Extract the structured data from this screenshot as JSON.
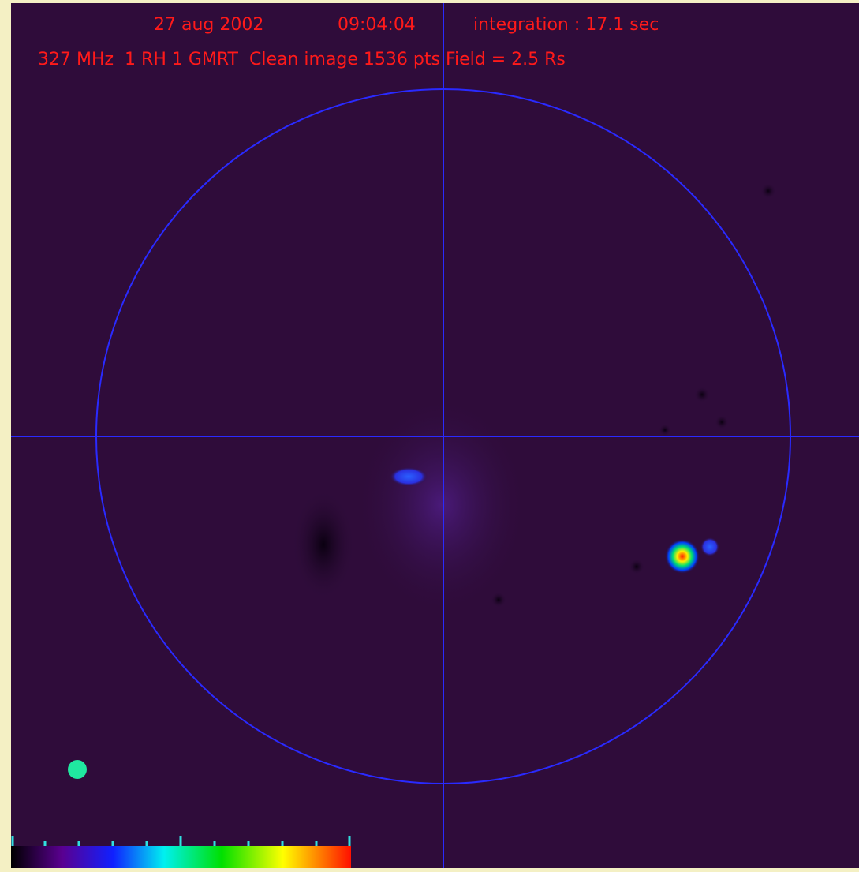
{
  "header": {
    "line1": {
      "date": "27 aug 2002",
      "time": "09:04:04",
      "integration": "integration : 17.1 sec"
    },
    "line2": "327 MHz  1 RH 1 GMRT  Clean image 1536 pts Field = 2.5 Rs"
  }
}
